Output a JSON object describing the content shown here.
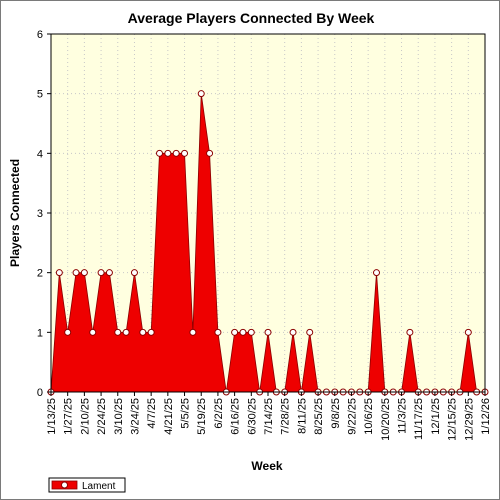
{
  "chart_data": {
    "type": "area",
    "title": "Average Players Connected By Week",
    "xlabel": "Week",
    "ylabel": "Players Connected",
    "ylim": [
      0,
      6
    ],
    "yticks": [
      0,
      1,
      2,
      3,
      4,
      5,
      6
    ],
    "grid": true,
    "legend_position": "bottom-left",
    "x": [
      "1/13/25",
      "1/20/25",
      "1/27/25",
      "2/3/25",
      "2/10/25",
      "2/17/25",
      "2/24/25",
      "3/3/25",
      "3/10/25",
      "3/17/25",
      "3/24/25",
      "3/31/25",
      "4/7/25",
      "4/14/25",
      "4/21/25",
      "4/28/25",
      "5/5/25",
      "5/12/25",
      "5/19/25",
      "5/26/25",
      "6/2/25",
      "6/9/25",
      "6/16/25",
      "6/23/25",
      "6/30/25",
      "7/7/25",
      "7/14/25",
      "7/21/25",
      "7/28/25",
      "8/4/25",
      "8/11/25",
      "8/18/25",
      "8/25/25",
      "9/1/25",
      "9/8/25",
      "9/15/25",
      "9/22/25",
      "9/29/25",
      "10/6/25",
      "10/13/25",
      "10/20/25",
      "10/27/25",
      "11/3/25",
      "11/10/25",
      "11/17/25",
      "11/24/25",
      "12/1/25",
      "12/8/25",
      "12/15/25",
      "12/22/25",
      "12/29/25",
      "1/5/26",
      "1/12/26"
    ],
    "tick_labels": [
      "1/13/25",
      "1/27/25",
      "2/10/25",
      "2/24/25",
      "3/10/25",
      "3/24/25",
      "4/7/25",
      "4/21/25",
      "5/5/25",
      "5/19/25",
      "6/2/25",
      "6/16/25",
      "6/30/25",
      "7/14/25",
      "7/28/25",
      "8/11/25",
      "8/25/25",
      "9/8/25",
      "9/22/25",
      "10/6/25",
      "10/20/25",
      "11/3/25",
      "11/17/25",
      "12/1/25",
      "12/15/25",
      "12/29/25",
      "1/12/26"
    ],
    "series": [
      {
        "name": "Lament",
        "color": "#ee0000",
        "values": [
          0,
          2,
          1,
          2,
          2,
          1,
          2,
          2,
          1,
          1,
          2,
          1,
          1,
          4,
          4,
          4,
          4,
          1,
          5,
          4,
          1,
          0,
          1,
          1,
          1,
          0,
          1,
          0,
          0,
          1,
          0,
          1,
          0,
          0,
          0,
          0,
          0,
          0,
          0,
          2,
          0,
          0,
          0,
          1,
          0,
          0,
          0,
          0,
          0,
          0,
          1,
          0,
          0
        ]
      }
    ]
  },
  "colors": {
    "plot_background": "#ffffe0",
    "area_fill": "#ee0000",
    "area_edge": "#8b0000",
    "marker_fill": "#ffffff",
    "marker_stroke": "#8b0000",
    "grid": "#c8c8c8"
  }
}
